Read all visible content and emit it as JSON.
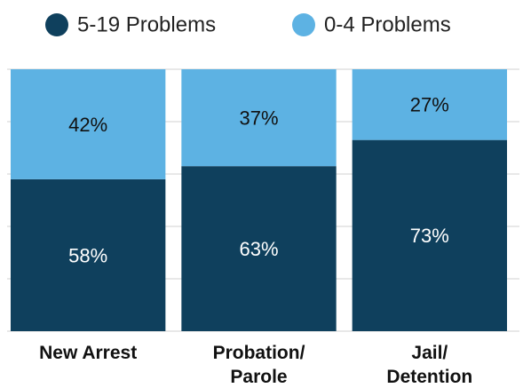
{
  "chart_data": {
    "type": "stacked_bar",
    "categories": [
      "New Arrest",
      "Probation/\nParole",
      "Jail/\nDetention"
    ],
    "series": [
      {
        "name": "5-19 Problems",
        "color": "#0f405d",
        "values": [
          58,
          63,
          73
        ],
        "value_labels": [
          "58%",
          "63%",
          "73%"
        ]
      },
      {
        "name": "0-4 Problems",
        "color": "#5db2e3",
        "values": [
          42,
          37,
          27
        ],
        "value_labels": [
          "42%",
          "37%",
          "27%"
        ]
      }
    ],
    "ylim": [
      0,
      100
    ],
    "yticks": [
      0,
      20,
      40,
      60,
      80,
      100
    ],
    "grid": true,
    "legend": "top"
  }
}
